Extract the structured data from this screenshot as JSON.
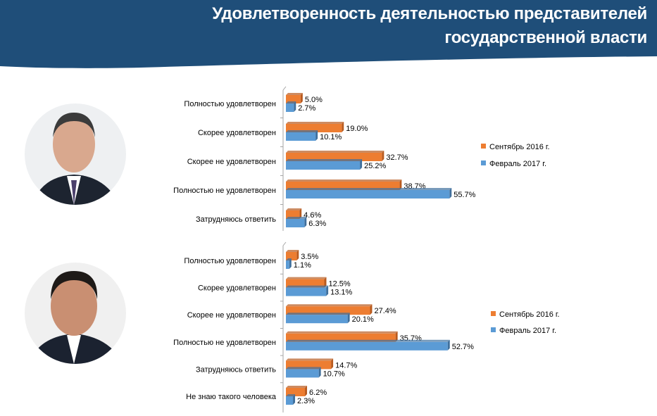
{
  "title_line1": "Удовлетворенность деятельностью представителей",
  "title_line2": "государственной власти",
  "colors": {
    "header": "#1F4E79",
    "sep2016": "#ED7D31",
    "feb2017": "#5B9BD5"
  },
  "photos": [
    "portrait-photo-1",
    "portrait-photo-2"
  ],
  "chart_data": [
    {
      "type": "bar",
      "orientation": "horizontal",
      "categories": [
        "Полностью удовлетворен",
        "Скорее удовлетворен",
        "Скорее не удовлетворен",
        "Полностью не удовлетворен",
        "Затрудняюсь ответить"
      ],
      "series": [
        {
          "name": "Сентябрь 2016 г.",
          "values": [
            5.0,
            19.0,
            32.7,
            38.7,
            4.6
          ],
          "labels": [
            "5.0%",
            "19.0%",
            "32.7%",
            "38.7%",
            "4.6%"
          ]
        },
        {
          "name": "Февраль 2017 г.",
          "values": [
            2.7,
            10.1,
            25.2,
            55.7,
            6.3
          ],
          "labels": [
            "2.7%",
            "10.1%",
            "25.2%",
            "55.7%",
            "6.3%"
          ]
        }
      ],
      "legend": "right"
    },
    {
      "type": "bar",
      "orientation": "horizontal",
      "categories": [
        "Полностью удовлетворен",
        "Скорее удовлетворен",
        "Скорее не удовлетворен",
        "Полностью не удовлетворен",
        "Затрудняюсь ответить",
        "Не знаю такого человека"
      ],
      "series": [
        {
          "name": "Сентябрь 2016 г.",
          "values": [
            3.5,
            12.5,
            27.4,
            35.7,
            14.7,
            6.2
          ],
          "labels": [
            "3.5%",
            "12.5%",
            "27.4%",
            "35.7%",
            "14.7%",
            "6.2%"
          ]
        },
        {
          "name": "Февраль 2017 г.",
          "values": [
            1.1,
            13.1,
            20.1,
            52.7,
            10.7,
            2.3
          ],
          "labels": [
            "1.1%",
            "13.1%",
            "20.1%",
            "52.7%",
            "10.7%",
            "2.3%"
          ]
        }
      ],
      "legend": "right"
    }
  ]
}
